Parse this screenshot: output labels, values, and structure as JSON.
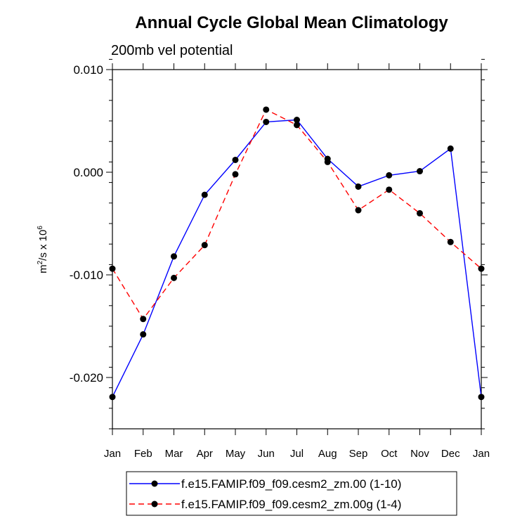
{
  "chart_data": {
    "type": "line",
    "title": "Annual Cycle Global Mean Climatology",
    "subtitle": "200mb vel potential",
    "ylabel_base": "m",
    "ylabel_exp1": "2",
    "ylabel_mid": "/s x 10",
    "ylabel_exp2": "6",
    "xlabel": "",
    "categories": [
      "Jan",
      "Feb",
      "Mar",
      "Apr",
      "May",
      "Jun",
      "Jul",
      "Aug",
      "Sep",
      "Oct",
      "Nov",
      "Dec",
      "Jan"
    ],
    "ylim": [
      -0.025,
      0.01
    ],
    "yticks": [
      0.01,
      0.0,
      -0.01,
      -0.02
    ],
    "ytick_labels": [
      "0.010",
      "0.000",
      "-0.010",
      "-0.020"
    ],
    "series": [
      {
        "name": "f.e15.FAMIP.f09_f09.cesm2_zm.00 (1-10)",
        "color": "#0000ff",
        "dash": "solid",
        "values": [
          -0.0219,
          -0.0158,
          -0.0082,
          -0.0022,
          0.0012,
          0.0049,
          0.0051,
          0.0013,
          -0.0014,
          -0.0003,
          0.0001,
          0.0023,
          -0.0219
        ]
      },
      {
        "name": "f.e15.FAMIP.f09_f09.cesm2_zm.00g (1-4)",
        "color": "#ff0000",
        "dash": "dashed",
        "values": [
          -0.0094,
          -0.0143,
          -0.0103,
          -0.0071,
          -0.0002,
          0.0061,
          0.0046,
          0.001,
          -0.0037,
          -0.0017,
          -0.004,
          -0.0068,
          -0.0094
        ]
      }
    ]
  }
}
